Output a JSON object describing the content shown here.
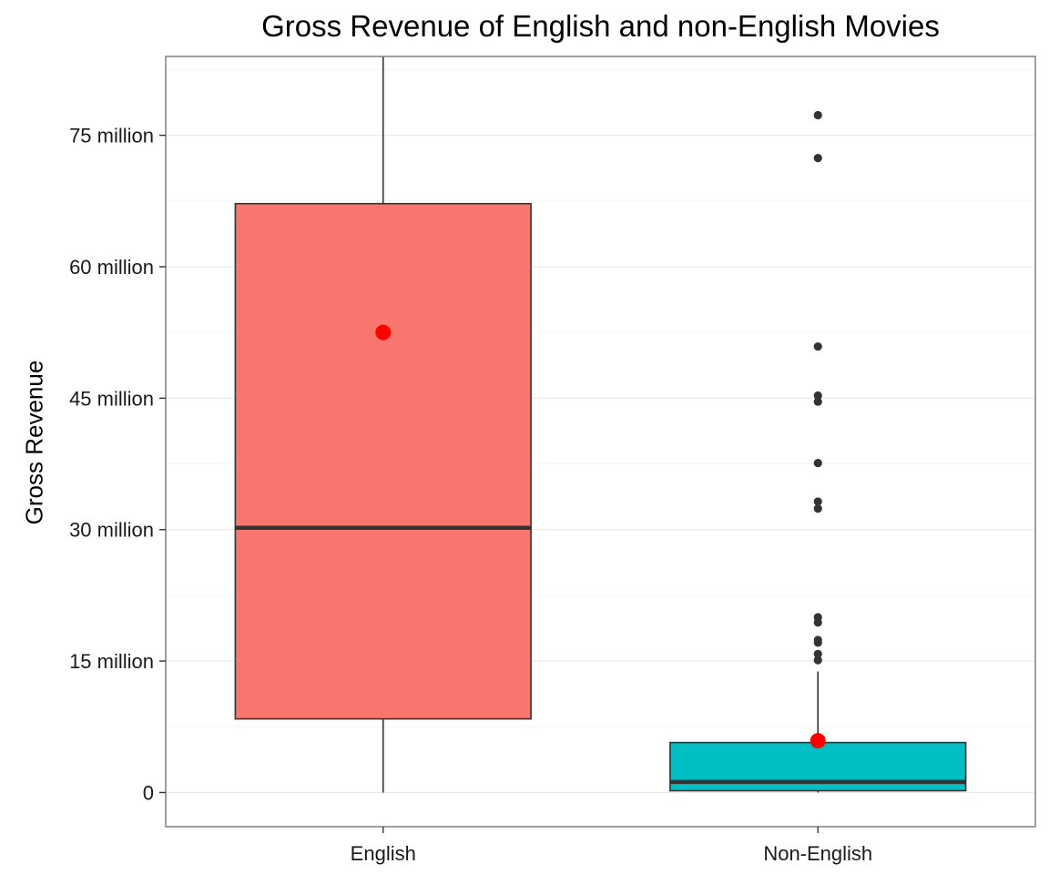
{
  "chart_data": {
    "type": "boxplot",
    "title": "Gross Revenue of English and non-English Movies",
    "xlabel": "",
    "ylabel": "Gross Revenue",
    "categories": [
      "English",
      "Non-English"
    ],
    "y_ticks": [
      {
        "value": 0,
        "label": "0"
      },
      {
        "value": 15000000,
        "label": "15 million"
      },
      {
        "value": 30000000,
        "label": "30 million"
      },
      {
        "value": 45000000,
        "label": "45 million"
      },
      {
        "value": 60000000,
        "label": "60 million"
      },
      {
        "value": 75000000,
        "label": "75 million"
      }
    ],
    "ylim": [
      -3900000,
      84000000
    ],
    "boxes": [
      {
        "category": "English",
        "color": "#f8766d",
        "whisker_low": 0,
        "q1": 8400000,
        "median": 30200000,
        "q3": 67200000,
        "whisker_high": 84000000,
        "mean": 52500000,
        "outliers": []
      },
      {
        "category": "Non-English",
        "color": "#00bfc4",
        "whisker_low": 0,
        "q1": 200000,
        "median": 1200000,
        "q3": 5700000,
        "whisker_high": 13800000,
        "mean": 5900000,
        "outliers": [
          77300000,
          72400000,
          50900000,
          45300000,
          44600000,
          37600000,
          33200000,
          32400000,
          20000000,
          19400000,
          17400000,
          17100000,
          15800000,
          15100000
        ]
      }
    ],
    "mean_marker_color": "#ff0000",
    "outlier_color": "#333333",
    "grid": true,
    "legend": "none"
  }
}
